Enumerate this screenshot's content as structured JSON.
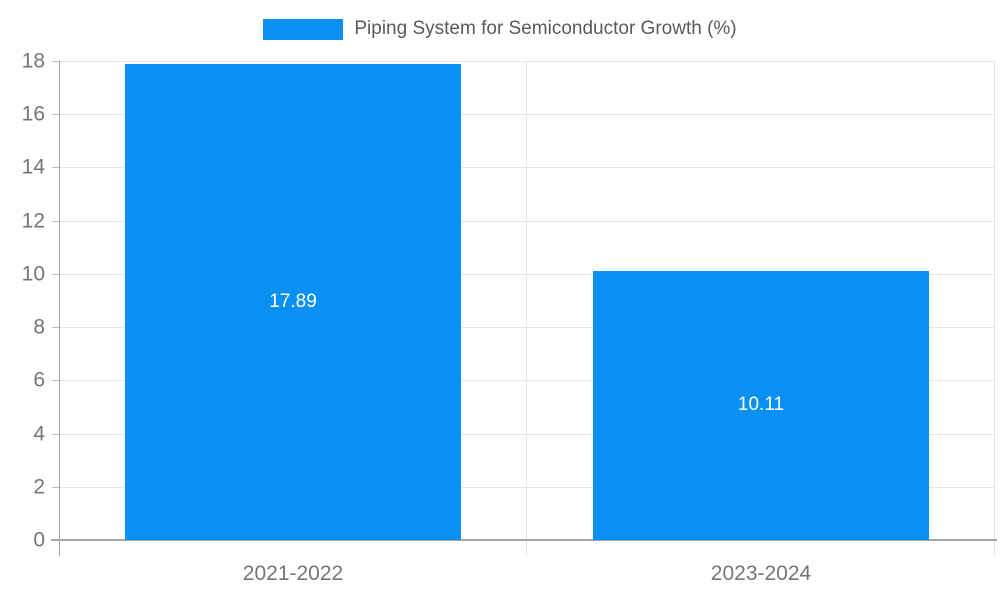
{
  "chart_data": {
    "type": "bar",
    "title": "Piping System for Semiconductor Growth (%)",
    "categories": [
      "2021-2022",
      "2023-2024"
    ],
    "values": [
      17.89,
      10.11
    ],
    "value_labels": [
      "17.89",
      "10.11"
    ],
    "ylim": [
      0,
      18
    ],
    "yticks": [
      0,
      2,
      4,
      6,
      8,
      10,
      12,
      14,
      16,
      18
    ],
    "grid": true,
    "legend_position": "top-center",
    "bar_width_fraction": 0.72,
    "colors": {
      "bar": "#0a8ff2",
      "grid": "#e6e6e6",
      "axis": "#a6a6a6",
      "tick": "#bdbdbd",
      "tick_label": "#757575",
      "legend_text": "#5a5a5a",
      "bar_label": "#ffffff",
      "background": "#ffffff"
    }
  }
}
